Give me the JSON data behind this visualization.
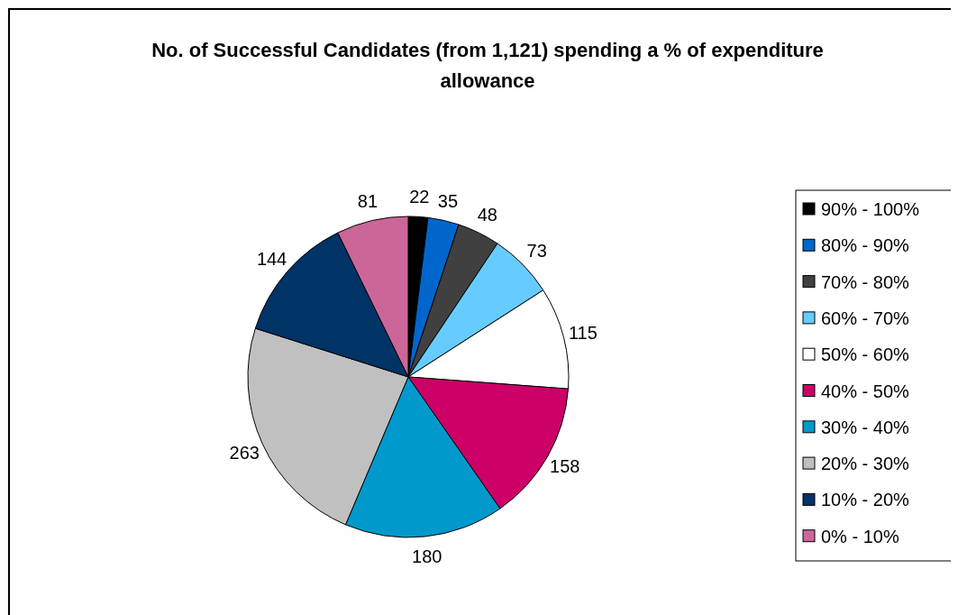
{
  "chart_data": {
    "type": "pie",
    "title": "No. of Successful Candidates (from 1,121) spending a % of expenditure allowance",
    "categories": [
      "90% - 100%",
      "80% - 90%",
      "70% - 80%",
      "60% - 70%",
      "50% - 60%",
      "40% - 50%",
      "30% - 40%",
      "20% - 30%",
      "10% - 20%",
      "0% - 10%"
    ],
    "values": [
      22,
      35,
      48,
      73,
      115,
      158,
      180,
      263,
      144,
      81
    ],
    "colors": [
      "#000000",
      "#0066cc",
      "#404040",
      "#66ccff",
      "#ffffff",
      "#cc0066",
      "#0099cc",
      "#c0c0c0",
      "#003366",
      "#cc6699"
    ],
    "data_labels": true,
    "legend": "right"
  }
}
